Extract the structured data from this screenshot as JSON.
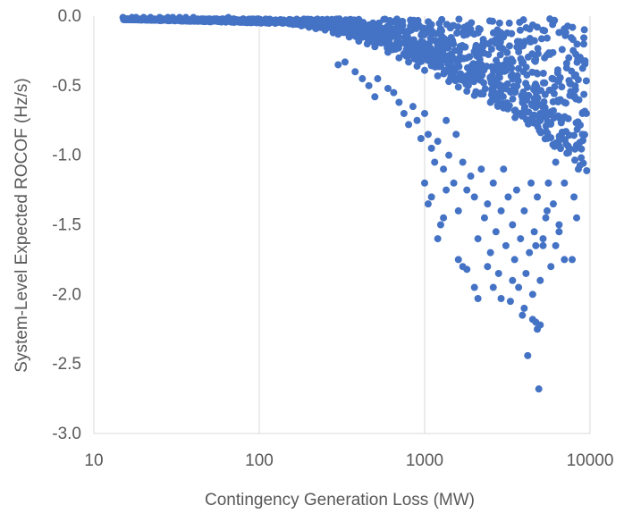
{
  "chart_data": {
    "type": "scatter",
    "title": "",
    "xlabel": "Contingency Generation Loss (MW)",
    "ylabel": "System-Level Expected ROCOF (Hz/s)",
    "x_scale": "log",
    "xlim": [
      10,
      10000
    ],
    "ylim": [
      -3.0,
      0.0
    ],
    "x_ticks": [
      10,
      100,
      1000,
      10000
    ],
    "x_tick_labels": [
      "10",
      "100",
      "1000",
      "10000"
    ],
    "y_ticks": [
      0.0,
      -0.5,
      -1.0,
      -1.5,
      -2.0,
      -2.5,
      -3.0
    ],
    "y_tick_labels": [
      "0.0",
      "-0.5",
      "-1.0",
      "-1.5",
      "-2.0",
      "-2.5",
      "-3.0"
    ],
    "grid": "vertical major gridlines",
    "legend": "none",
    "series": [
      {
        "color": "#4472C4",
        "points": [
          [
            15,
            -0.01
          ],
          [
            17,
            -0.01
          ],
          [
            18,
            -0.01
          ],
          [
            20,
            -0.01
          ],
          [
            22,
            -0.01
          ],
          [
            25,
            -0.01
          ],
          [
            28,
            -0.01
          ],
          [
            30,
            -0.01
          ],
          [
            33,
            -0.01
          ],
          [
            36,
            -0.01
          ],
          [
            40,
            -0.01
          ],
          [
            45,
            -0.02
          ],
          [
            50,
            -0.02
          ],
          [
            55,
            -0.02
          ],
          [
            60,
            -0.02
          ],
          [
            65,
            -0.01
          ],
          [
            70,
            -0.02
          ],
          [
            80,
            -0.02
          ],
          [
            90,
            -0.03
          ],
          [
            100,
            -0.03
          ],
          [
            110,
            -0.04
          ],
          [
            120,
            -0.04
          ],
          [
            140,
            -0.05
          ],
          [
            160,
            -0.06
          ],
          [
            180,
            -0.07
          ],
          [
            200,
            -0.08
          ],
          [
            220,
            -0.09
          ],
          [
            250,
            -0.1
          ],
          [
            280,
            -0.12
          ],
          [
            300,
            -0.13
          ],
          [
            350,
            -0.15
          ],
          [
            400,
            -0.18
          ],
          [
            450,
            -0.2
          ],
          [
            500,
            -0.22
          ],
          [
            600,
            -0.26
          ],
          [
            700,
            -0.3
          ],
          [
            800,
            -0.33
          ],
          [
            900,
            -0.36
          ],
          [
            1000,
            -0.39
          ],
          [
            1200,
            -0.43
          ],
          [
            1400,
            -0.47
          ],
          [
            1600,
            -0.51
          ],
          [
            1800,
            -0.54
          ],
          [
            2000,
            -0.57
          ],
          [
            2500,
            -0.62
          ],
          [
            3000,
            -0.66
          ],
          [
            3500,
            -0.68
          ],
          [
            4000,
            -0.7
          ],
          [
            5000,
            -0.7
          ],
          [
            6000,
            -0.68
          ],
          [
            7000,
            -0.62
          ],
          [
            8000,
            -0.58
          ],
          [
            9000,
            -0.7
          ],
          [
            9500,
            -0.7
          ],
          [
            300,
            -0.35
          ],
          [
            330,
            -0.33
          ],
          [
            380,
            -0.4
          ],
          [
            420,
            -0.45
          ],
          [
            460,
            -0.5
          ],
          [
            500,
            -0.58
          ],
          [
            520,
            -0.45
          ],
          [
            600,
            -0.52
          ],
          [
            650,
            -0.55
          ],
          [
            700,
            -0.62
          ],
          [
            750,
            -0.7
          ],
          [
            800,
            -0.78
          ],
          [
            850,
            -0.65
          ],
          [
            900,
            -0.75
          ],
          [
            950,
            -0.88
          ],
          [
            1000,
            -0.7
          ],
          [
            1050,
            -0.85
          ],
          [
            1100,
            -0.95
          ],
          [
            1150,
            -1.05
          ],
          [
            1200,
            -0.9
          ],
          [
            1300,
            -1.1
          ],
          [
            1350,
            -0.75
          ],
          [
            1400,
            -1.0
          ],
          [
            1500,
            -1.2
          ],
          [
            1550,
            -0.85
          ],
          [
            1600,
            -1.4
          ],
          [
            1700,
            -1.05
          ],
          [
            1800,
            -1.25
          ],
          [
            1900,
            -1.15
          ],
          [
            2000,
            -1.3
          ],
          [
            2100,
            -1.6
          ],
          [
            2200,
            -1.1
          ],
          [
            2300,
            -1.45
          ],
          [
            2400,
            -1.35
          ],
          [
            2500,
            -1.7
          ],
          [
            2600,
            -1.2
          ],
          [
            2700,
            -1.55
          ],
          [
            2800,
            -1.85
          ],
          [
            2900,
            -1.4
          ],
          [
            3000,
            -1.1
          ],
          [
            3100,
            -1.65
          ],
          [
            3200,
            -1.3
          ],
          [
            3300,
            -2.05
          ],
          [
            3400,
            -1.5
          ],
          [
            3500,
            -1.75
          ],
          [
            3600,
            -1.25
          ],
          [
            3700,
            -1.95
          ],
          [
            3800,
            -1.6
          ],
          [
            3900,
            -2.15
          ],
          [
            4000,
            -1.4
          ],
          [
            4100,
            -1.85
          ],
          [
            4200,
            -2.44
          ],
          [
            4300,
            -1.7
          ],
          [
            4400,
            -1.2
          ],
          [
            4500,
            -2.0
          ],
          [
            4600,
            -1.55
          ],
          [
            4700,
            -2.2
          ],
          [
            4800,
            -1.3
          ],
          [
            4900,
            -2.68
          ],
          [
            5000,
            -1.9
          ],
          [
            5200,
            -1.6
          ],
          [
            5400,
            -1.45
          ],
          [
            5600,
            -1.2
          ],
          [
            5800,
            -1.8
          ],
          [
            6000,
            -1.35
          ],
          [
            6200,
            -1.05
          ],
          [
            6500,
            -1.55
          ],
          [
            7000,
            -1.2
          ],
          [
            7500,
            -0.95
          ],
          [
            8000,
            -1.3
          ],
          [
            8500,
            -1.1
          ],
          [
            9000,
            -0.85
          ],
          [
            1600,
            -1.75
          ],
          [
            1700,
            -1.8
          ],
          [
            1800,
            -1.82
          ],
          [
            2000,
            -1.95
          ],
          [
            2100,
            -2.03
          ],
          [
            2400,
            -1.8
          ],
          [
            2600,
            -1.95
          ],
          [
            2900,
            -2.03
          ],
          [
            3400,
            -1.9
          ],
          [
            4000,
            -2.1
          ],
          [
            4500,
            -2.18
          ],
          [
            4800,
            -2.25
          ],
          [
            5000,
            -2.22
          ],
          [
            4700,
            -1.65
          ],
          [
            5200,
            -1.65
          ],
          [
            5500,
            -1.4
          ],
          [
            6200,
            -1.65
          ],
          [
            6500,
            -1.5
          ],
          [
            7000,
            -1.75
          ],
          [
            7800,
            -1.75
          ],
          [
            8300,
            -1.45
          ],
          [
            1000,
            -1.2
          ],
          [
            1050,
            -1.35
          ],
          [
            1100,
            -1.3
          ],
          [
            1200,
            -1.6
          ],
          [
            1250,
            -1.5
          ],
          [
            1300,
            -1.45
          ],
          [
            1350,
            -1.25
          ]
        ]
      }
    ]
  }
}
